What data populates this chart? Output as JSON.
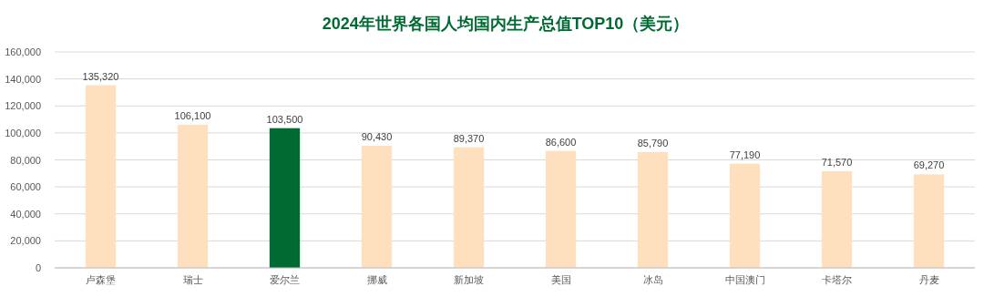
{
  "chart_data": {
    "type": "bar",
    "title": "2024年世界各国人均国内生产总值TOP10（美元）",
    "categories": [
      "卢森堡",
      "瑞士",
      "爱尔兰",
      "挪威",
      "新加坡",
      "美国",
      "冰岛",
      "中国澳门",
      "卡塔尔",
      "丹麦"
    ],
    "values": [
      135320,
      106100,
      103500,
      90430,
      89370,
      86600,
      85790,
      77190,
      71570,
      69270
    ],
    "value_labels": [
      "135,320",
      "106,100",
      "103,500",
      "90,430",
      "89,370",
      "86,600",
      "85,790",
      "77,190",
      "71,570",
      "69,270"
    ],
    "colors": [
      "#fee0bf",
      "#fee0bf",
      "#006a33",
      "#fee0bf",
      "#fee0bf",
      "#fee0bf",
      "#fee0bf",
      "#fee0bf",
      "#fee0bf",
      "#fee0bf"
    ],
    "ylim": [
      0,
      160000
    ],
    "yticks": [
      {
        "value": 0,
        "label": "0"
      },
      {
        "value": 20000,
        "label": "20,000"
      },
      {
        "value": 40000,
        "label": "40,000"
      },
      {
        "value": 60000,
        "label": "60,000"
      },
      {
        "value": 80000,
        "label": "80,000"
      },
      {
        "value": 100000,
        "label": "100,000"
      },
      {
        "value": 120000,
        "label": "120,000"
      },
      {
        "value": 140000,
        "label": "140,000"
      },
      {
        "value": 160000,
        "label": "160,000"
      }
    ],
    "grid": "y"
  }
}
